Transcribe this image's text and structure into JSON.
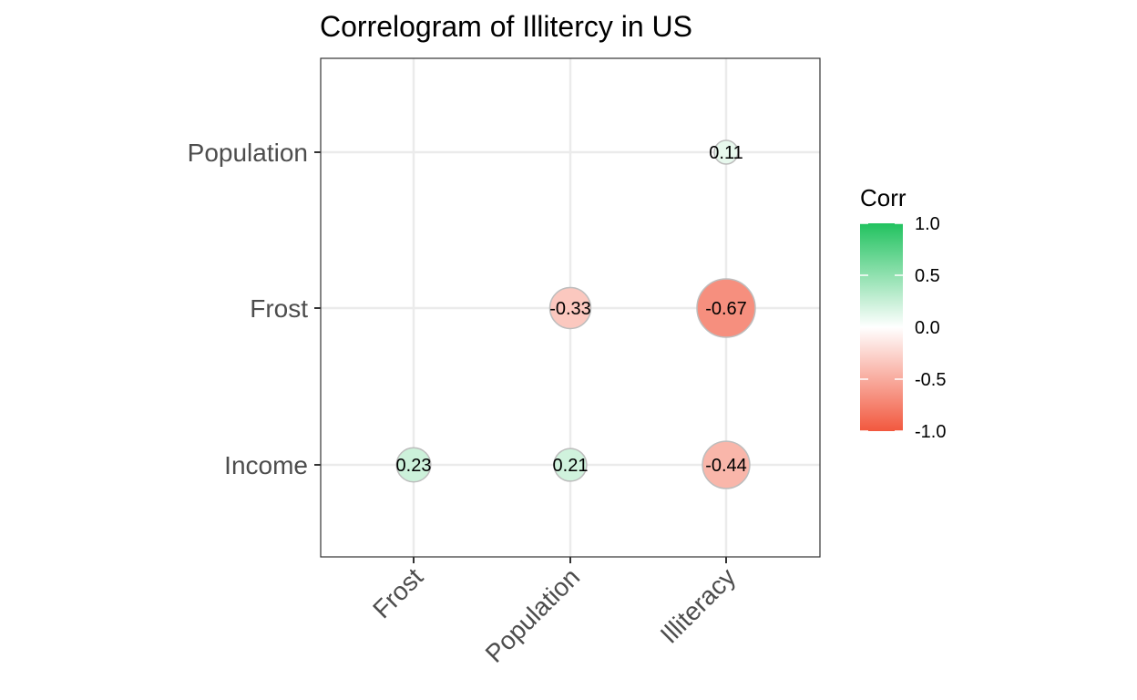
{
  "chart_data": {
    "type": "correlogram",
    "title": "Correlogram of Illitercy in US",
    "x_categories": [
      "Frost",
      "Population",
      "Illiteracy"
    ],
    "y_categories": [
      "Income",
      "Frost",
      "Population"
    ],
    "cells": [
      {
        "x": "Illiteracy",
        "y": "Population",
        "value": 0.11,
        "label": "0.11"
      },
      {
        "x": "Population",
        "y": "Frost",
        "value": -0.33,
        "label": "-0.33"
      },
      {
        "x": "Illiteracy",
        "y": "Frost",
        "value": -0.67,
        "label": "-0.67"
      },
      {
        "x": "Frost",
        "y": "Income",
        "value": 0.23,
        "label": "0.23"
      },
      {
        "x": "Population",
        "y": "Income",
        "value": 0.21,
        "label": "0.21"
      },
      {
        "x": "Illiteracy",
        "y": "Income",
        "value": -0.44,
        "label": "-0.44"
      }
    ],
    "legend": {
      "title": "Corr",
      "ticks": [
        1.0,
        0.5,
        0.0,
        -0.5,
        -1.0
      ],
      "tick_labels": [
        "1.0",
        "0.5",
        "0.0",
        "-0.5",
        "-1.0"
      ],
      "range": [
        -1,
        1
      ],
      "colors": {
        "high": "#21c25f",
        "mid": "#ffffff",
        "low": "#f2583e"
      },
      "placement": "right"
    },
    "grid": true
  }
}
